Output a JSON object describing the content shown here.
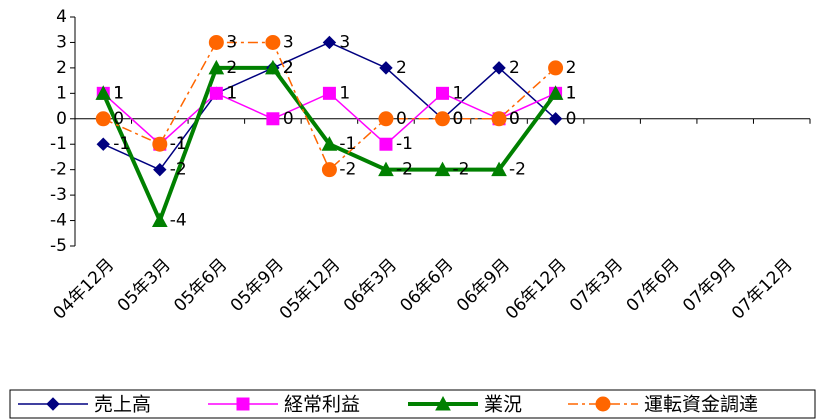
{
  "chart_data": {
    "type": "line",
    "categories": [
      "04年12月",
      "05年3月",
      "05年6月",
      "05年9月",
      "05年12月",
      "06年3月",
      "06年6月",
      "06年9月",
      "06年12月",
      "07年3月",
      "07年6月",
      "07年9月",
      "07年12月"
    ],
    "series": [
      {
        "name": "売上高",
        "color": "#000080",
        "marker": "diamond",
        "dash": false,
        "width": 1.5,
        "values": [
          -1,
          -2,
          1,
          2,
          3,
          2,
          0,
          2,
          0,
          null,
          null,
          null,
          null
        ]
      },
      {
        "name": "経常利益",
        "color": "#ff00ff",
        "marker": "square",
        "dash": false,
        "width": 1.5,
        "values": [
          1,
          -1,
          1,
          0,
          1,
          -1,
          1,
          0,
          1,
          null,
          null,
          null,
          null
        ]
      },
      {
        "name": "業況",
        "color": "#008000",
        "marker": "triangle",
        "dash": false,
        "width": 4,
        "values": [
          1,
          -4,
          2,
          2,
          -1,
          -2,
          -2,
          -2,
          1,
          null,
          null,
          null,
          null
        ]
      },
      {
        "name": "運転資金調達",
        "color": "#ff6600",
        "marker": "circle",
        "dash": true,
        "width": 1.5,
        "values": [
          0,
          -1,
          3,
          3,
          -2,
          0,
          0,
          0,
          2,
          null,
          null,
          null,
          null
        ]
      }
    ],
    "ylim": [
      -5,
      4
    ],
    "yticks": [
      -5,
      -4,
      -3,
      -2,
      -1,
      0,
      1,
      2,
      3,
      4
    ],
    "grid": false
  }
}
